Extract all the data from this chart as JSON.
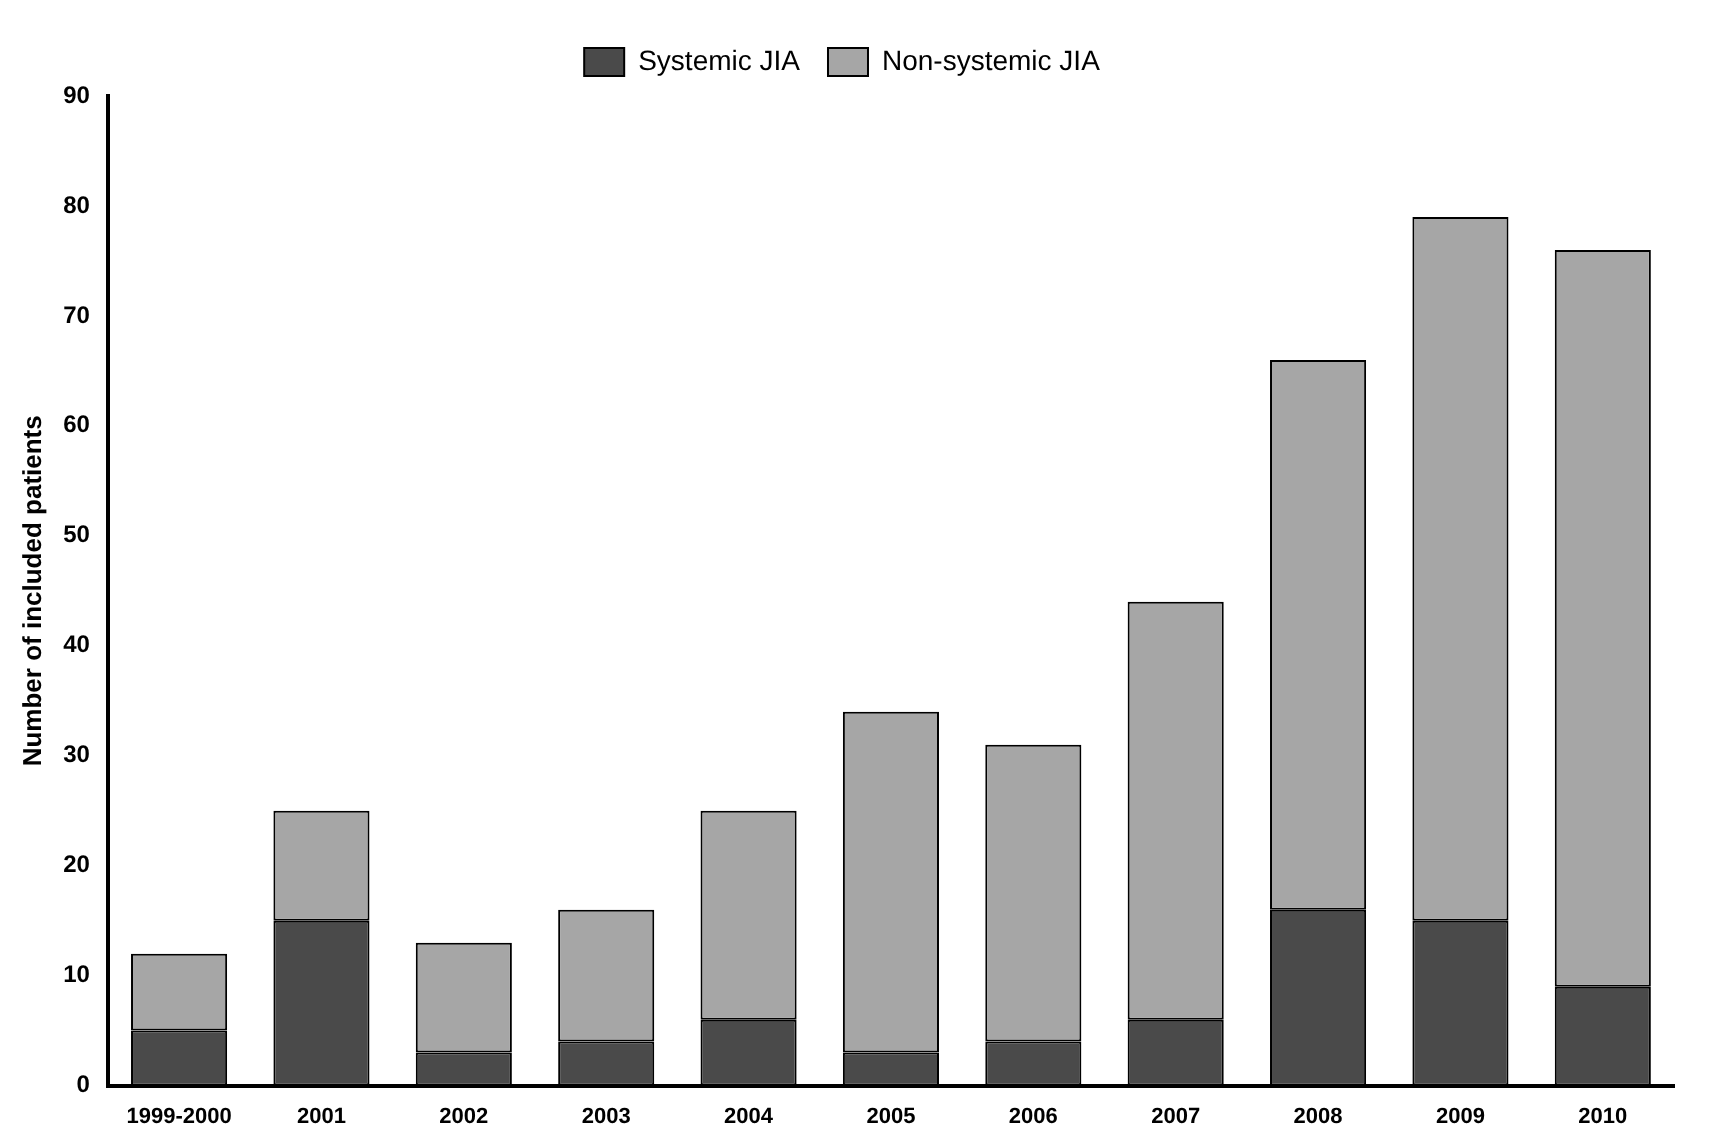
{
  "chart_data": {
    "type": "bar",
    "stacked": true,
    "ylabel": "Number of included patients",
    "categories": [
      "1999-2000",
      "2001",
      "2002",
      "2003",
      "2004",
      "2005",
      "2006",
      "2007",
      "2008",
      "2009",
      "2010"
    ],
    "series": [
      {
        "name": "Systemic JIA",
        "color": "#4a4a4a",
        "values": [
          5,
          15,
          3,
          4,
          6,
          3,
          4,
          6,
          16,
          15,
          9
        ]
      },
      {
        "name": "Non-systemic JIA",
        "color": "#a6a6a6",
        "values": [
          7,
          10,
          10,
          12,
          19,
          31,
          27,
          38,
          50,
          64,
          67
        ]
      }
    ],
    "ylim": [
      0,
      90
    ],
    "yticks": [
      0,
      10,
      20,
      30,
      40,
      50,
      60,
      70,
      80,
      90
    ],
    "grid": false,
    "legend": "top"
  }
}
